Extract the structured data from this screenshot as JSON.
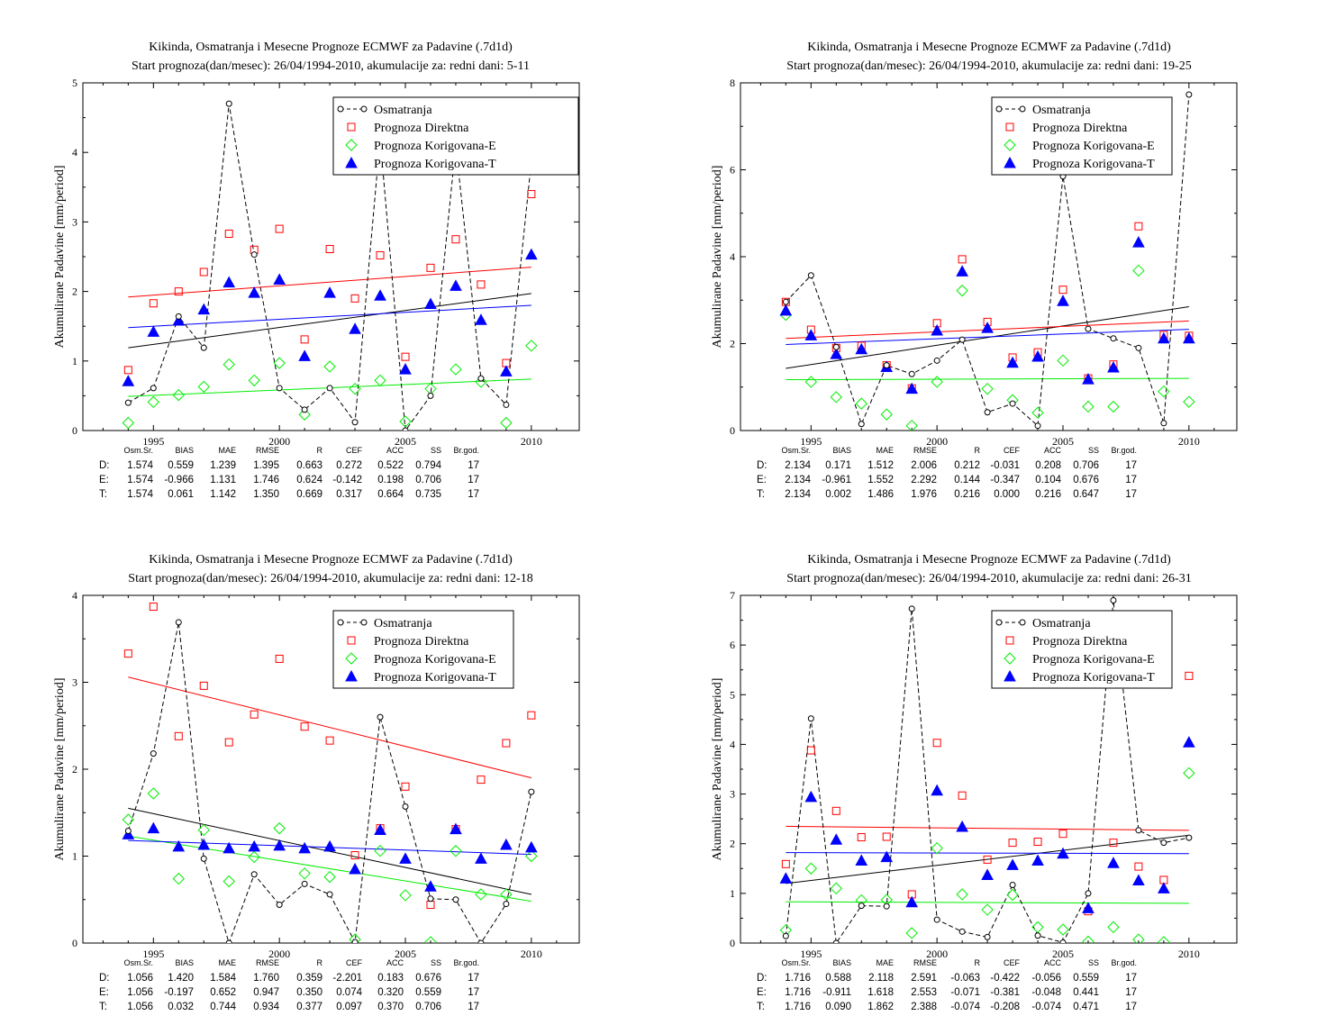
{
  "chart_data": [
    {
      "type": "line",
      "title": "Kikinda, Osmatranja i Mesecne Prognoze ECMWF za Padavine (.7d1d)",
      "subtitle": "Start prognoza(dan/mesec): 26/04/1994-2010, akumulacije za: redni dani: 5-11",
      "ylabel": "Akumulirane Padavine [mm/period]",
      "xlim": [
        1992.2,
        2011.9
      ],
      "ylim": [
        0,
        5
      ],
      "xticks": [
        1995,
        2000,
        2005,
        2010
      ],
      "yticks": [
        0,
        1,
        2,
        3,
        4,
        5
      ],
      "x": [
        1994,
        1995,
        1996,
        1997,
        1998,
        1999,
        2000,
        2001,
        2002,
        2003,
        2004,
        2005,
        2006,
        2007,
        2008,
        2009,
        2010
      ],
      "series": [
        {
          "name": "Osmatranja",
          "marker": "circle",
          "color": "#000000",
          "values": [
            0.4,
            0.61,
            1.64,
            1.19,
            4.7,
            2.53,
            0.61,
            0.3,
            0.61,
            0.12,
            4.2,
            0.0,
            0.5,
            4.1,
            0.75,
            0.37,
            3.88
          ]
        },
        {
          "name": "Prognoza Direktna",
          "marker": "square",
          "color": "#ff0000",
          "values": [
            0.87,
            1.83,
            2.0,
            2.28,
            2.83,
            2.6,
            2.9,
            1.31,
            2.61,
            1.9,
            2.52,
            1.06,
            2.34,
            2.75,
            2.1,
            0.97,
            3.4
          ]
        },
        {
          "name": "Prognoza Korigovana-E",
          "marker": "diamond",
          "color": "#00ee00",
          "values": [
            0.11,
            0.41,
            0.51,
            0.63,
            0.95,
            0.72,
            0.97,
            0.23,
            0.92,
            0.6,
            0.72,
            0.13,
            0.6,
            0.88,
            0.7,
            0.11,
            1.22
          ]
        },
        {
          "name": "Prognoza Korigovana-T",
          "marker": "triangle",
          "color": "#0000ff",
          "values": [
            0.71,
            1.42,
            1.58,
            1.74,
            2.13,
            1.98,
            2.17,
            1.07,
            1.98,
            1.46,
            1.94,
            0.88,
            1.82,
            2.08,
            1.59,
            0.85,
            2.53
          ]
        }
      ],
      "trends": [
        {
          "color": "#000000",
          "y1994": 1.19,
          "y2010": 1.97
        },
        {
          "color": "#ff0000",
          "y1994": 1.92,
          "y2010": 2.35
        },
        {
          "color": "#00ee00",
          "y1994": 0.49,
          "y2010": 0.74
        },
        {
          "color": "#0000ff",
          "y1994": 1.48,
          "y2010": 1.8
        }
      ],
      "stats": {
        "headers": [
          "Osm.Sr.",
          "BIAS",
          "MAE",
          "RMSE",
          "R",
          "CEF",
          "ACC",
          "SS",
          "Br.god."
        ],
        "rows": [
          {
            "label": "D:",
            "color": "#ff0000",
            "values": [
              "1.574",
              "0.559",
              "1.239",
              "1.395",
              "0.663",
              "0.272",
              "0.522",
              "0.794",
              "17"
            ]
          },
          {
            "label": "E:",
            "color": "#00ee00",
            "values": [
              "1.574",
              "-0.966",
              "1.131",
              "1.746",
              "0.624",
              "-0.142",
              "0.198",
              "0.706",
              "17"
            ]
          },
          {
            "label": "T:",
            "color": "#0000ff",
            "values": [
              "1.574",
              "0.061",
              "1.142",
              "1.350",
              "0.669",
              "0.317",
              "0.664",
              "0.735",
              "17"
            ]
          }
        ]
      }
    },
    {
      "type": "line",
      "title": "Kikinda, Osmatranja i Mesecne Prognoze ECMWF za Padavine (.7d1d)",
      "subtitle": "Start prognoza(dan/mesec): 26/04/1994-2010, akumulacije za: redni dani: 19-25",
      "ylabel": "Akumulirane Padavine [mm/period]",
      "xlim": [
        1992.2,
        2011.9
      ],
      "ylim": [
        0,
        8
      ],
      "xticks": [
        1995,
        2000,
        2005,
        2010
      ],
      "yticks": [
        0,
        2,
        4,
        6,
        8
      ],
      "x": [
        1994,
        1995,
        1996,
        1997,
        1998,
        1999,
        2000,
        2001,
        2002,
        2003,
        2004,
        2005,
        2006,
        2007,
        2008,
        2009,
        2010
      ],
      "series": [
        {
          "name": "Osmatranja",
          "marker": "circle",
          "color": "#000000",
          "values": [
            2.96,
            3.57,
            1.92,
            0.15,
            1.5,
            1.3,
            1.61,
            2.09,
            0.42,
            0.62,
            0.11,
            5.85,
            2.34,
            2.12,
            1.9,
            0.17,
            7.73
          ]
        },
        {
          "name": "Prognoza Direktna",
          "marker": "square",
          "color": "#ff0000",
          "values": [
            2.96,
            2.32,
            1.9,
            1.95,
            1.5,
            0.97,
            2.47,
            3.94,
            2.5,
            1.68,
            1.8,
            3.24,
            1.2,
            1.52,
            4.7,
            2.2,
            2.18
          ]
        },
        {
          "name": "Prognoza Korigovana-E",
          "marker": "diamond",
          "color": "#00ee00",
          "values": [
            2.66,
            1.12,
            0.77,
            0.62,
            0.37,
            0.11,
            1.12,
            3.22,
            0.96,
            0.7,
            0.41,
            1.61,
            0.55,
            0.55,
            3.68,
            0.9,
            0.66
          ]
        },
        {
          "name": "Prognoza Korigovana-T",
          "marker": "triangle",
          "color": "#0000ff",
          "values": [
            2.76,
            2.19,
            1.76,
            1.87,
            1.46,
            0.96,
            2.3,
            3.66,
            2.36,
            1.56,
            1.7,
            2.98,
            1.18,
            1.45,
            4.33,
            2.12,
            2.12
          ]
        }
      ],
      "trends": [
        {
          "color": "#000000",
          "y1994": 1.43,
          "y2010": 2.85
        },
        {
          "color": "#ff0000",
          "y1994": 2.12,
          "y2010": 2.52
        },
        {
          "color": "#00ee00",
          "y1994": 1.17,
          "y2010": 1.2
        },
        {
          "color": "#0000ff",
          "y1994": 1.98,
          "y2010": 2.33
        }
      ],
      "stats": {
        "headers": [
          "Osm.Sr.",
          "BIAS",
          "MAE",
          "RMSE",
          "R",
          "CEF",
          "ACC",
          "SS",
          "Br.god."
        ],
        "rows": [
          {
            "label": "D:",
            "color": "#ff0000",
            "values": [
              "2.134",
              "0.171",
              "1.512",
              "2.006",
              "0.212",
              "-0.031",
              "0.208",
              "0.706",
              "17"
            ]
          },
          {
            "label": "E:",
            "color": "#00ee00",
            "values": [
              "2.134",
              "-0.961",
              "1.552",
              "2.292",
              "0.144",
              "-0.347",
              "0.104",
              "0.676",
              "17"
            ]
          },
          {
            "label": "T:",
            "color": "#0000ff",
            "values": [
              "2.134",
              "0.002",
              "1.486",
              "1.976",
              "0.216",
              "0.000",
              "0.216",
              "0.647",
              "17"
            ]
          }
        ]
      }
    },
    {
      "type": "line",
      "title": "Kikinda, Osmatranja i Mesecne Prognoze ECMWF za Padavine (.7d1d)",
      "subtitle": "Start prognoza(dan/mesec): 26/04/1994-2010, akumulacije za: redni dani: 12-18",
      "ylabel": "Akumulirane Padavine [mm/period]",
      "xlim": [
        1992.2,
        2011.9
      ],
      "ylim": [
        0,
        4
      ],
      "xticks": [
        1995,
        2000,
        2005,
        2010
      ],
      "yticks": [
        0,
        1,
        2,
        3,
        4
      ],
      "x": [
        1994,
        1995,
        1996,
        1997,
        1998,
        1999,
        2000,
        2001,
        2002,
        2003,
        2004,
        2005,
        2006,
        2007,
        2008,
        2009,
        2010
      ],
      "series": [
        {
          "name": "Osmatranja",
          "marker": "circle",
          "color": "#000000",
          "values": [
            1.29,
            2.18,
            3.69,
            0.97,
            0.0,
            0.79,
            0.44,
            0.68,
            0.56,
            0.01,
            2.6,
            1.57,
            0.51,
            0.5,
            0.0,
            0.45,
            1.74
          ]
        },
        {
          "name": "Prognoza Direktna",
          "marker": "square",
          "color": "#ff0000",
          "values": [
            3.33,
            3.87,
            2.38,
            2.96,
            2.31,
            2.63,
            3.27,
            2.49,
            2.33,
            1.01,
            1.32,
            1.8,
            0.44,
            1.31,
            1.88,
            2.3,
            2.62
          ]
        },
        {
          "name": "Prognoza Korigovana-E",
          "marker": "diamond",
          "color": "#00ee00",
          "values": [
            1.42,
            1.72,
            0.74,
            1.3,
            0.71,
            0.99,
            1.32,
            0.8,
            0.76,
            0.04,
            1.06,
            0.55,
            0.01,
            1.06,
            0.56,
            0.56,
            1.0
          ]
        },
        {
          "name": "Prognoza Korigovana-T",
          "marker": "triangle",
          "color": "#0000ff",
          "values": [
            1.25,
            1.32,
            1.11,
            1.13,
            1.09,
            1.11,
            1.12,
            1.09,
            1.11,
            0.85,
            1.3,
            0.97,
            0.65,
            1.31,
            0.97,
            1.13,
            1.1
          ]
        }
      ],
      "trends": [
        {
          "color": "#000000",
          "y1994": 1.55,
          "y2010": 0.56
        },
        {
          "color": "#ff0000",
          "y1994": 3.06,
          "y2010": 1.9
        },
        {
          "color": "#00ee00",
          "y1994": 1.23,
          "y2010": 0.48
        },
        {
          "color": "#0000ff",
          "y1994": 1.18,
          "y2010": 1.02
        }
      ],
      "stats": {
        "headers": [
          "Osm.Sr.",
          "BIAS",
          "MAE",
          "RMSE",
          "R",
          "CEF",
          "ACC",
          "SS",
          "Br.god."
        ],
        "rows": [
          {
            "label": "D:",
            "color": "#ff0000",
            "values": [
              "1.056",
              "1.420",
              "1.584",
              "1.760",
              "0.359",
              "-2.201",
              "0.183",
              "0.676",
              "17"
            ]
          },
          {
            "label": "E:",
            "color": "#00ee00",
            "values": [
              "1.056",
              "-0.197",
              "0.652",
              "0.947",
              "0.350",
              "0.074",
              "0.320",
              "0.559",
              "17"
            ]
          },
          {
            "label": "T:",
            "color": "#0000ff",
            "values": [
              "1.056",
              "0.032",
              "0.744",
              "0.934",
              "0.377",
              "0.097",
              "0.370",
              "0.706",
              "17"
            ]
          }
        ]
      }
    },
    {
      "type": "line",
      "title": "Kikinda, Osmatranja i Mesecne Prognoze ECMWF za Padavine (.7d1d)",
      "subtitle": "Start prognoza(dan/mesec): 26/04/1994-2010, akumulacije za: redni dani: 26-31",
      "ylabel": "Akumulirane Padavine [mm/period]",
      "xlim": [
        1992.2,
        2011.9
      ],
      "ylim": [
        0,
        7
      ],
      "xticks": [
        1995,
        2000,
        2005,
        2010
      ],
      "yticks": [
        0,
        1,
        2,
        3,
        4,
        5,
        6,
        7
      ],
      "x": [
        1994,
        1995,
        1996,
        1997,
        1998,
        1999,
        2000,
        2001,
        2002,
        2003,
        2004,
        2005,
        2006,
        2007,
        2008,
        2009,
        2010
      ],
      "series": [
        {
          "name": "Osmatranja",
          "marker": "circle",
          "color": "#000000",
          "values": [
            0.14,
            4.52,
            0.0,
            0.75,
            0.74,
            6.73,
            0.47,
            0.23,
            0.12,
            1.17,
            0.15,
            0.01,
            1.0,
            6.9,
            2.27,
            2.02,
            2.12
          ]
        },
        {
          "name": "Prognoza Direktna",
          "marker": "square",
          "color": "#ff0000",
          "values": [
            1.59,
            3.88,
            2.66,
            2.13,
            2.14,
            0.98,
            4.03,
            2.97,
            1.68,
            2.02,
            2.04,
            2.2,
            0.64,
            2.02,
            1.54,
            1.27,
            5.38
          ]
        },
        {
          "name": "Prognoza Korigovana-E",
          "marker": "diamond",
          "color": "#00ee00",
          "values": [
            0.26,
            1.5,
            1.1,
            0.86,
            0.87,
            0.2,
            1.91,
            0.98,
            0.67,
            0.97,
            0.32,
            0.27,
            0.03,
            0.32,
            0.07,
            0.02,
            3.42
          ]
        },
        {
          "name": "Prognoza Korigovana-T",
          "marker": "triangle",
          "color": "#0000ff",
          "values": [
            1.3,
            2.94,
            2.08,
            1.66,
            1.73,
            0.82,
            3.07,
            2.34,
            1.37,
            1.57,
            1.66,
            1.8,
            0.7,
            1.61,
            1.26,
            1.1,
            4.04
          ]
        }
      ],
      "trends": [
        {
          "color": "#000000",
          "y1994": 1.2,
          "y2010": 2.17
        },
        {
          "color": "#ff0000",
          "y1994": 2.35,
          "y2010": 2.27
        },
        {
          "color": "#00ee00",
          "y1994": 0.83,
          "y2010": 0.8
        },
        {
          "color": "#0000ff",
          "y1994": 1.82,
          "y2010": 1.8
        }
      ],
      "stats": {
        "headers": [
          "Osm.Sr.",
          "BIAS",
          "MAE",
          "RMSE",
          "R",
          "CEF",
          "ACC",
          "SS",
          "Br.god."
        ],
        "rows": [
          {
            "label": "D:",
            "color": "#ff0000",
            "values": [
              "1.716",
              "0.588",
              "2.118",
              "2.591",
              "-0.063",
              "-0.422",
              "-0.056",
              "0.559",
              "17"
            ]
          },
          {
            "label": "E:",
            "color": "#00ee00",
            "values": [
              "1.716",
              "-0.911",
              "1.618",
              "2.553",
              "-0.071",
              "-0.381",
              "-0.048",
              "0.441",
              "17"
            ]
          },
          {
            "label": "T:",
            "color": "#0000ff",
            "values": [
              "1.716",
              "0.090",
              "1.862",
              "2.388",
              "-0.074",
              "-0.208",
              "-0.074",
              "0.471",
              "17"
            ]
          }
        ]
      }
    }
  ]
}
